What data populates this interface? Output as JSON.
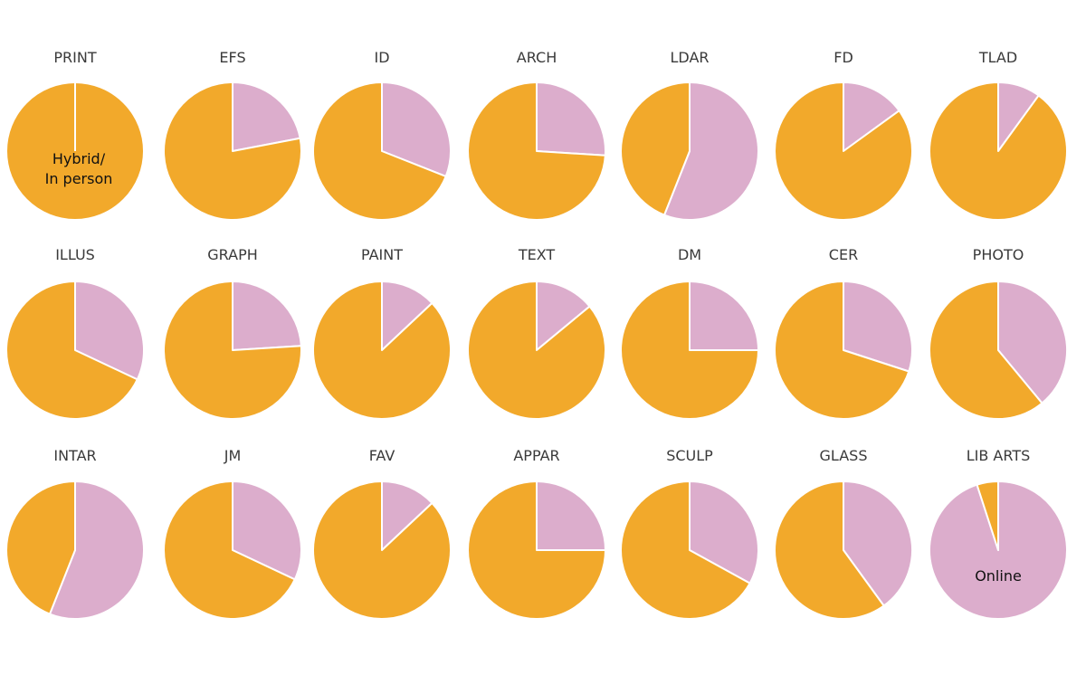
{
  "chart_data": {
    "type": "pie",
    "legend_labels": {
      "hybrid": "Hybrid/ In person",
      "online": "Online"
    },
    "series_colors": {
      "hybrid": "#f2a92b",
      "online": "#dcadcc"
    },
    "annotations": [
      {
        "lines": [
          "Hybrid/",
          "In person"
        ],
        "on": "PRINT"
      },
      {
        "lines": [
          "Online"
        ],
        "on": "LIB ARTS"
      }
    ],
    "charts": [
      {
        "title": "PRINT",
        "online_pct": 0.0
      },
      {
        "title": "EFS",
        "online_pct": 22.0
      },
      {
        "title": "ID",
        "online_pct": 31.0
      },
      {
        "title": "ARCH",
        "online_pct": 26.0
      },
      {
        "title": "LDAR",
        "online_pct": 56.0
      },
      {
        "title": "FD",
        "online_pct": 15.0
      },
      {
        "title": "TLAD",
        "online_pct": 10.0
      },
      {
        "title": "ILLUS",
        "online_pct": 32.0
      },
      {
        "title": "GRAPH",
        "online_pct": 24.0
      },
      {
        "title": "PAINT",
        "online_pct": 13.0
      },
      {
        "title": "TEXT",
        "online_pct": 14.0
      },
      {
        "title": "DM",
        "online_pct": 25.0
      },
      {
        "title": "CER",
        "online_pct": 30.0
      },
      {
        "title": "PHOTO",
        "online_pct": 39.0
      },
      {
        "title": "INTAR",
        "online_pct": 56.0
      },
      {
        "title": "JM",
        "online_pct": 32.0
      },
      {
        "title": "FAV",
        "online_pct": 13.0
      },
      {
        "title": "APPAR",
        "online_pct": 25.0
      },
      {
        "title": "SCULP",
        "online_pct": 33.0
      },
      {
        "title": "GLASS",
        "online_pct": 40.0
      },
      {
        "title": "LIB ARTS",
        "online_pct": 95.0
      }
    ]
  }
}
